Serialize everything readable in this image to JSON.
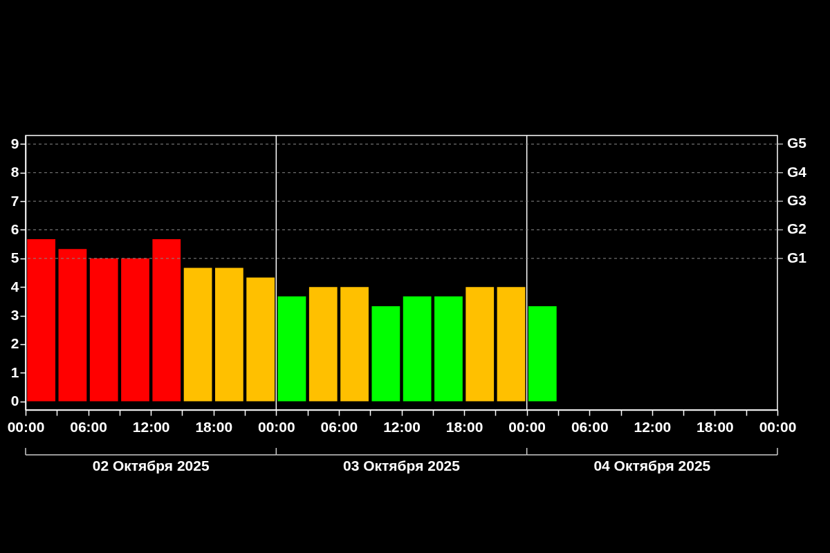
{
  "chart_data": {
    "type": "bar",
    "x": [
      "2025-10-02T01:30",
      "2025-10-02T04:30",
      "2025-10-02T07:30",
      "2025-10-02T10:30",
      "2025-10-02T13:30",
      "2025-10-02T16:30",
      "2025-10-02T19:30",
      "2025-10-02T22:30",
      "2025-10-03T01:30",
      "2025-10-03T04:30",
      "2025-10-03T07:30",
      "2025-10-03T10:30",
      "2025-10-03T13:30",
      "2025-10-03T16:30",
      "2025-10-03T19:30",
      "2025-10-03T22:30",
      "2025-10-04T01:30"
    ],
    "values": [
      5.67,
      5.33,
      5.0,
      5.0,
      5.67,
      4.67,
      4.67,
      4.33,
      3.67,
      4.0,
      4.0,
      3.33,
      3.67,
      3.67,
      4.0,
      4.0,
      3.33
    ],
    "colors": [
      "#ff0000",
      "#ff0000",
      "#ff0000",
      "#ff0000",
      "#ff0000",
      "#ffc000",
      "#ffc000",
      "#ffc000",
      "#00ff00",
      "#ffc000",
      "#ffc000",
      "#00ff00",
      "#00ff00",
      "#00ff00",
      "#ffc000",
      "#ffc000",
      "#00ff00"
    ],
    "xlim": [
      "2025-10-02T00:00",
      "2025-10-05T00:00"
    ],
    "xticks": [
      {
        "value": "2025-10-02T00:00",
        "label": "00:00"
      },
      {
        "value": "2025-10-02T03:00",
        "label": null
      },
      {
        "value": "2025-10-02T06:00",
        "label": "06:00"
      },
      {
        "value": "2025-10-02T09:00",
        "label": null
      },
      {
        "value": "2025-10-02T12:00",
        "label": "12:00"
      },
      {
        "value": "2025-10-02T15:00",
        "label": null
      },
      {
        "value": "2025-10-02T18:00",
        "label": "18:00"
      },
      {
        "value": "2025-10-02T21:00",
        "label": null
      },
      {
        "value": "2025-10-03T00:00",
        "label": "00:00"
      },
      {
        "value": "2025-10-03T03:00",
        "label": null
      },
      {
        "value": "2025-10-03T06:00",
        "label": "06:00"
      },
      {
        "value": "2025-10-03T09:00",
        "label": null
      },
      {
        "value": "2025-10-03T12:00",
        "label": "12:00"
      },
      {
        "value": "2025-10-03T15:00",
        "label": null
      },
      {
        "value": "2025-10-03T18:00",
        "label": "18:00"
      },
      {
        "value": "2025-10-03T21:00",
        "label": null
      },
      {
        "value": "2025-10-04T00:00",
        "label": "00:00"
      },
      {
        "value": "2025-10-04T03:00",
        "label": null
      },
      {
        "value": "2025-10-04T06:00",
        "label": "06:00"
      },
      {
        "value": "2025-10-04T09:00",
        "label": null
      },
      {
        "value": "2025-10-04T12:00",
        "label": "12:00"
      },
      {
        "value": "2025-10-04T15:00",
        "label": null
      },
      {
        "value": "2025-10-04T18:00",
        "label": "18:00"
      },
      {
        "value": "2025-10-04T21:00",
        "label": null
      },
      {
        "value": "2025-10-05T00:00",
        "label": "00:00"
      }
    ],
    "ylim": [
      -0.3,
      9.3
    ],
    "yticks": [
      0,
      1,
      2,
      3,
      4,
      5,
      6,
      7,
      8,
      9
    ],
    "ref_lines": [
      {
        "axis": "x",
        "value": "2025-10-03T00:00",
        "color": "#ffffff"
      },
      {
        "axis": "x",
        "value": "2025-10-04T00:00",
        "color": "#ffffff"
      },
      {
        "axis": "y",
        "value": 5,
        "label": "G1",
        "line_style": "dashed",
        "color": "#888888"
      },
      {
        "axis": "y",
        "value": 6,
        "label": "G2",
        "line_style": "dashed",
        "color": "#888888"
      },
      {
        "axis": "y",
        "value": 7,
        "label": "G3",
        "line_style": "dashed",
        "color": "#888888"
      },
      {
        "axis": "y",
        "value": 8,
        "label": "G4",
        "line_style": "dashed",
        "color": "#888888"
      },
      {
        "axis": "y",
        "value": 9,
        "label": "G5",
        "line_style": "dashed",
        "color": "#888888"
      }
    ],
    "annotations": [
      "02 Октября 2025",
      "03 Октября 2025",
      "04 Октября 2025"
    ]
  }
}
